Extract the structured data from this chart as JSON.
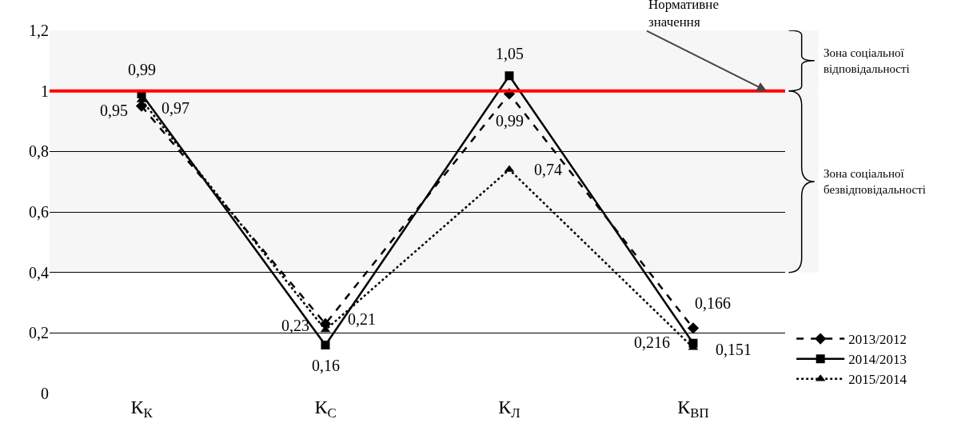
{
  "chart_data": {
    "type": "line",
    "categories": [
      "К$_{К}$",
      "К$_{С}$",
      "К$_{Л}$",
      "К$_{ВП}$"
    ],
    "series": [
      {
        "name": "2013/2012",
        "color": "#000000",
        "values": [
          0.95,
          0.23,
          0.99,
          0.216
        ],
        "value_labels": [
          "0,95",
          "0,23",
          "0,99",
          "0,216"
        ],
        "marker": "diamond",
        "line_style": "dashed"
      },
      {
        "name": "2014/2013",
        "color": "#000000",
        "values": [
          0.99,
          0.16,
          1.05,
          0.166
        ],
        "value_labels": [
          "0,99",
          "0,16",
          "1,05",
          "0,166"
        ],
        "marker": "square",
        "line_style": "solid"
      },
      {
        "name": "2015/2014",
        "color": "#000000",
        "values": [
          0.97,
          0.21,
          0.74,
          0.151
        ],
        "value_labels": [
          "0,97",
          "0,21",
          "0,74",
          "0,151"
        ],
        "marker": "triangle",
        "line_style": "dotted"
      }
    ],
    "ylim": [
      0,
      1.2
    ],
    "yticks": [
      0,
      {
        "value": 0.2,
        "label": "0,2"
      },
      {
        "value": 0.4,
        "label": "0,4"
      },
      {
        "value": 0.6,
        "label": "0,6"
      },
      {
        "value": 0.8,
        "label": "0,8"
      },
      1,
      {
        "value": 1.2,
        "label": "1,2"
      }
    ],
    "grid": "y",
    "legend": "bottom right",
    "ref_lines": [
      {
        "axis": "y",
        "value": 1,
        "label": "Нормативне значення",
        "color": "#ff0000"
      }
    ],
    "bands": [
      {
        "axis": "y",
        "from": 1,
        "to": 1.2,
        "label": "Зона соціальної відповідальності"
      },
      {
        "axis": "y",
        "from": 0.4,
        "to": 1,
        "label": "Зона соціальної безвідповідальності"
      }
    ]
  }
}
